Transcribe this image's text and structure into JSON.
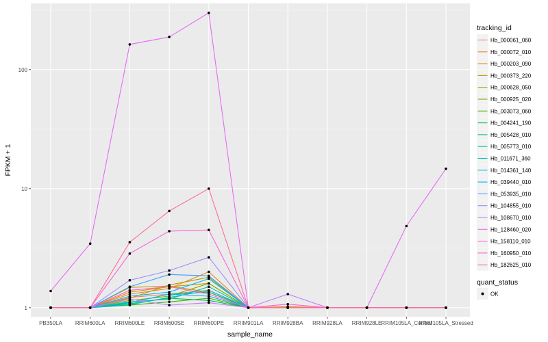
{
  "chart_data": {
    "type": "line",
    "xlabel": "sample_name",
    "ylabel": "FPKM + 1",
    "y_scale": "log10",
    "ylim": [
      0.84,
      360
    ],
    "y_ticks": [
      1,
      10,
      100
    ],
    "y_tick_labels": [
      "1",
      "10",
      "100"
    ],
    "grid": true,
    "legend_position": "right",
    "categories": [
      "PB350LA",
      "RRIM600LA",
      "RRIM600LE",
      "RRIM600SE",
      "RRIM600PE",
      "RRIM901LA",
      "RRIM928BA",
      "RRIM928LA",
      "RRIM928LE",
      "RRIM105LA_Control",
      "RRIM105LA_Stressed"
    ],
    "legend_title": "tracking_id",
    "series": [
      {
        "name": "Hb_000061_060",
        "color": "#F8766D",
        "values": [
          1,
          1,
          1.22,
          1.3,
          1.4,
          1,
          1,
          1,
          1,
          1,
          1
        ]
      },
      {
        "name": "Hb_000072_010",
        "color": "#EA8331",
        "values": [
          1,
          1,
          1.3,
          1.45,
          2.0,
          1,
          1,
          1,
          1,
          1,
          1
        ]
      },
      {
        "name": "Hb_000203_090",
        "color": "#D89000",
        "values": [
          1,
          1,
          1.35,
          1.5,
          1.6,
          1,
          1.02,
          1,
          1,
          1,
          1
        ]
      },
      {
        "name": "Hb_000373_220",
        "color": "#C09B00",
        "values": [
          1,
          1,
          1.48,
          1.52,
          1.35,
          1,
          1,
          1,
          1,
          1,
          1
        ]
      },
      {
        "name": "Hb_000628_050",
        "color": "#A3A500",
        "values": [
          1,
          1,
          1.2,
          1.55,
          1.8,
          1,
          1,
          1,
          1,
          1,
          1
        ]
      },
      {
        "name": "Hb_000925_020",
        "color": "#7CAE00",
        "values": [
          1,
          1,
          1.15,
          1.25,
          1.6,
          1,
          1,
          1,
          1,
          1,
          1
        ]
      },
      {
        "name": "Hb_003073_060",
        "color": "#39B600",
        "values": [
          1,
          1,
          1.05,
          1.12,
          1.2,
          1,
          1,
          1,
          1,
          1,
          1
        ]
      },
      {
        "name": "Hb_004241_190",
        "color": "#00BB4E",
        "values": [
          1,
          1,
          1.08,
          1.2,
          1.15,
          1,
          1,
          1,
          1,
          1,
          1
        ]
      },
      {
        "name": "Hb_005428_010",
        "color": "#00BF7D",
        "values": [
          1,
          1,
          1.1,
          1.3,
          1.35,
          1,
          1,
          1,
          1,
          1,
          1
        ]
      },
      {
        "name": "Hb_005773_010",
        "color": "#00C1A3",
        "values": [
          1,
          1,
          1.12,
          1.18,
          1.5,
          1,
          1,
          1,
          1,
          1,
          1
        ]
      },
      {
        "name": "Hb_011671_360",
        "color": "#00BFC4",
        "values": [
          1,
          1,
          1.06,
          1.22,
          1.4,
          1,
          1,
          1,
          1,
          1,
          1
        ]
      },
      {
        "name": "Hb_014361_140",
        "color": "#00BAE0",
        "values": [
          1,
          1,
          1.25,
          1.35,
          1.75,
          1,
          1,
          1,
          1,
          1,
          1
        ]
      },
      {
        "name": "Hb_039440_010",
        "color": "#00B0F6",
        "values": [
          1,
          1,
          1.1,
          1.3,
          1.25,
          1,
          1,
          1,
          1,
          1,
          1
        ]
      },
      {
        "name": "Hb_053935_010",
        "color": "#35A2FF",
        "values": [
          1,
          1,
          1.5,
          1.9,
          1.85,
          1,
          1,
          1,
          1,
          1,
          1
        ]
      },
      {
        "name": "Hb_104855_010",
        "color": "#9590FF",
        "values": [
          1,
          1,
          1.7,
          2.05,
          2.65,
          1,
          1,
          1,
          1,
          1,
          1
        ]
      },
      {
        "name": "Hb_108670_010",
        "color": "#C77CFF",
        "values": [
          1,
          1,
          1.18,
          1.05,
          1.1,
          1,
          1.3,
          1,
          1,
          1,
          1
        ]
      },
      {
        "name": "Hb_128460_020",
        "color": "#E76BF3",
        "values": [
          1.38,
          3.45,
          163,
          188,
          300,
          1,
          1,
          1,
          1,
          4.85,
          14.7
        ]
      },
      {
        "name": "Hb_158110_010",
        "color": "#FA62DB",
        "values": [
          1,
          1,
          2.85,
          4.4,
          4.5,
          1,
          1,
          1,
          1,
          1,
          1
        ]
      },
      {
        "name": "Hb_160950_010",
        "color": "#FF62BC",
        "values": [
          1,
          1,
          1.4,
          1.5,
          1.3,
          1,
          1.07,
          1,
          1,
          1,
          1
        ]
      },
      {
        "name": "Hb_182625_010",
        "color": "#FF6C91",
        "values": [
          1,
          1,
          3.55,
          6.5,
          10,
          1,
          1,
          1,
          1,
          1,
          1
        ]
      }
    ],
    "shape_legend": {
      "title": "quant_status",
      "entries": [
        "OK"
      ]
    }
  }
}
